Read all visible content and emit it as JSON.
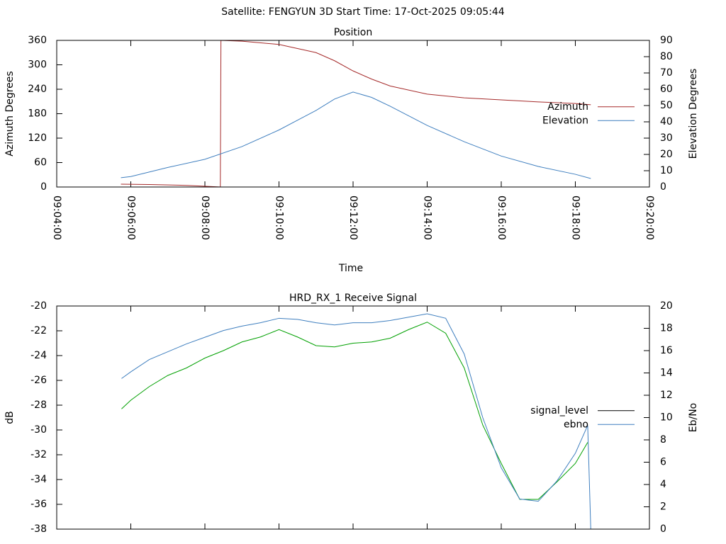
{
  "header": {
    "title": "Satellite: FENGYUN 3D    Start Time: 17-Oct-2025 09:05:44"
  },
  "chart_data": [
    {
      "type": "line",
      "title": "Position",
      "xlabel": "Time",
      "ylabel": "Azimuth Degrees",
      "y2label": "Elevation Degrees",
      "xlim": [
        "09:04:00",
        "09:20:00"
      ],
      "xticks": [
        "09:04:00",
        "09:06:00",
        "09:08:00",
        "09:10:00",
        "09:12:00",
        "09:14:00",
        "09:16:00",
        "09:18:00",
        "09:20:00"
      ],
      "show_xtick_labels": true,
      "ylim": [
        0,
        360
      ],
      "yticks": [
        0,
        60,
        120,
        180,
        240,
        300,
        360
      ],
      "y2lim": [
        0,
        90
      ],
      "y2ticks": [
        0,
        10,
        20,
        30,
        40,
        50,
        60,
        70,
        80,
        90
      ],
      "legend": "right",
      "series": [
        {
          "name": "Azimuth",
          "color": "#a52a2a",
          "x": [
            "09:05:44",
            "09:06:30",
            "09:07:30",
            "09:08:20",
            "09:08:25",
            "09:08:26",
            "09:09:00",
            "09:10:00",
            "09:11:00",
            "09:11:30",
            "09:12:00",
            "09:12:30",
            "09:13:00",
            "09:14:00",
            "09:15:00",
            "09:16:00",
            "09:17:00",
            "09:18:00",
            "09:18:25"
          ],
          "values": [
            7,
            6,
            4,
            0.5,
            0,
            360,
            358,
            350,
            330,
            310,
            285,
            265,
            248,
            228,
            219,
            214,
            209,
            205,
            202
          ]
        },
        {
          "name": "Elevation",
          "color": "#3f7fbf",
          "axis": "y2",
          "x": [
            "09:05:44",
            "09:06:00",
            "09:07:00",
            "09:08:00",
            "09:09:00",
            "09:10:00",
            "09:10:30",
            "09:11:00",
            "09:11:30",
            "09:12:00",
            "09:12:30",
            "09:13:00",
            "09:14:00",
            "09:15:00",
            "09:16:00",
            "09:17:00",
            "09:18:00",
            "09:18:25"
          ],
          "values": [
            5.7,
            6.4,
            12,
            17,
            24.8,
            35,
            41,
            47,
            54,
            58.3,
            55,
            49.6,
            37.8,
            27.8,
            19,
            12.6,
            7.8,
            5.2
          ]
        }
      ]
    },
    {
      "type": "line",
      "title": "HRD_RX_1 Receive Signal",
      "ylabel": "dB",
      "y2label": "Eb/No",
      "xlim": [
        "09:04:00",
        "09:20:00"
      ],
      "xticks": [
        "09:04:00",
        "09:06:00",
        "09:08:00",
        "09:10:00",
        "09:12:00",
        "09:14:00",
        "09:16:00",
        "09:18:00",
        "09:20:00"
      ],
      "show_xtick_labels": false,
      "ylim": [
        -38,
        -20
      ],
      "yticks": [
        -38,
        -36,
        -34,
        -32,
        -30,
        -28,
        -26,
        -24,
        -22,
        -20
      ],
      "y2lim": [
        0,
        20
      ],
      "y2ticks": [
        0,
        2,
        4,
        6,
        8,
        10,
        12,
        14,
        16,
        18,
        20
      ],
      "legend": "right",
      "series": [
        {
          "name": "signal_level",
          "color": "#00a000",
          "legend_color": "#000000",
          "x": [
            "09:05:45",
            "09:06:00",
            "09:06:30",
            "09:07:00",
            "09:07:30",
            "09:08:00",
            "09:08:30",
            "09:09:00",
            "09:09:30",
            "09:10:00",
            "09:10:30",
            "09:11:00",
            "09:11:30",
            "09:12:00",
            "09:12:30",
            "09:13:00",
            "09:13:30",
            "09:14:00",
            "09:14:30",
            "09:15:00",
            "09:15:30",
            "09:16:00",
            "09:16:30",
            "09:17:00",
            "09:17:30",
            "09:18:00",
            "09:18:20"
          ],
          "values": [
            -28.3,
            -27.6,
            -26.5,
            -25.6,
            -25.0,
            -24.2,
            -23.6,
            -22.9,
            -22.5,
            -21.9,
            -22.5,
            -23.2,
            -23.3,
            -23.0,
            -22.9,
            -22.6,
            -21.9,
            -21.3,
            -22.2,
            -25.0,
            -29.6,
            -32.7,
            -35.6,
            -35.6,
            -34.2,
            -32.7,
            -31.0
          ]
        },
        {
          "name": "ebno",
          "color": "#3f7fbf",
          "axis": "y2",
          "x": [
            "09:05:45",
            "09:06:00",
            "09:06:30",
            "09:07:00",
            "09:07:30",
            "09:08:00",
            "09:08:30",
            "09:09:00",
            "09:09:30",
            "09:10:00",
            "09:10:30",
            "09:11:00",
            "09:11:30",
            "09:12:00",
            "09:12:30",
            "09:13:00",
            "09:13:30",
            "09:14:00",
            "09:14:30",
            "09:15:00",
            "09:15:30",
            "09:16:00",
            "09:16:30",
            "09:17:00",
            "09:17:30",
            "09:18:00",
            "09:18:20",
            "09:18:25"
          ],
          "values": [
            13.5,
            14.1,
            15.2,
            15.9,
            16.6,
            17.2,
            17.8,
            18.2,
            18.5,
            18.9,
            18.8,
            18.5,
            18.3,
            18.5,
            18.5,
            18.7,
            19.0,
            19.3,
            18.9,
            15.7,
            10.0,
            5.5,
            2.7,
            2.5,
            4.3,
            6.8,
            9.3,
            0
          ]
        }
      ]
    }
  ]
}
